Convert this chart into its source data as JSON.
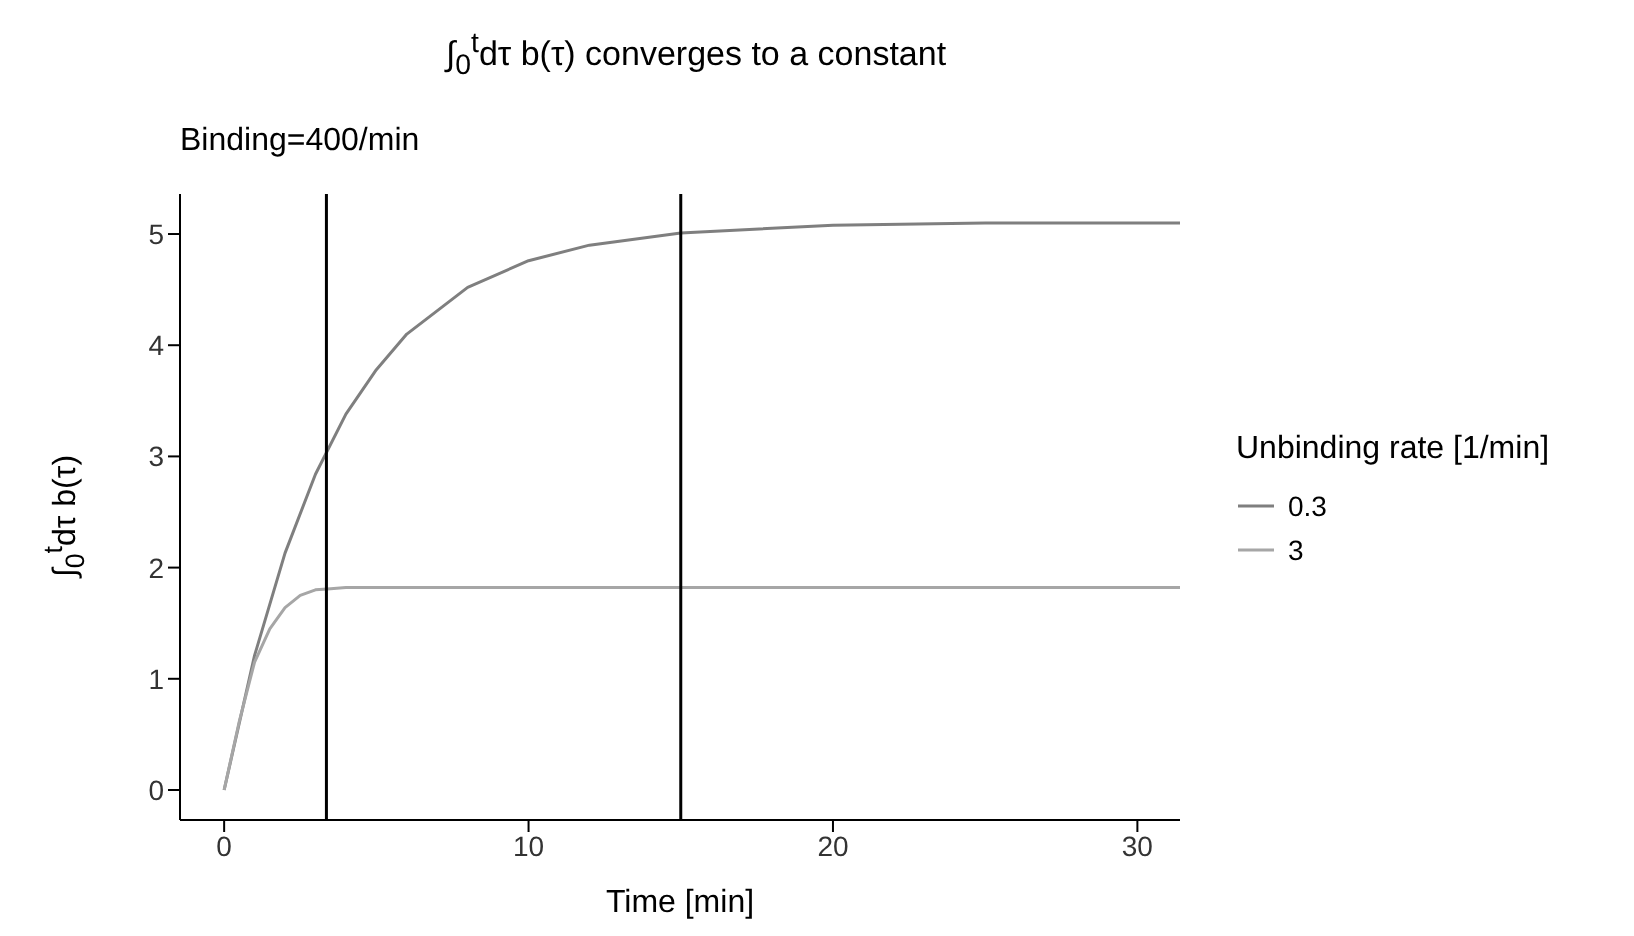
{
  "chart_data": {
    "type": "line",
    "title": "∫$_{0}$$^{t}$dτ b(τ) converges to a constant",
    "subtitle": "Binding=400/min",
    "xlabel": "Time [min]",
    "ylabel": "∫$_{0}$$^{t}$dτ b(τ)",
    "legend_title": "Unbinding rate [1/min]",
    "legend": "right",
    "xlim": [
      -1.45,
      31.4
    ],
    "xticks": [
      0,
      10,
      20,
      30
    ],
    "ylim": [
      -0.27,
      5.36
    ],
    "yticks": [
      0,
      1,
      2,
      3,
      4,
      5
    ],
    "series": [
      {
        "name": "0.3",
        "color": "#7f7f7f",
        "x": [
          0,
          1,
          2,
          3,
          4,
          5,
          6,
          8,
          10,
          12,
          15,
          20,
          25,
          31.4
        ],
        "values": [
          0,
          1.21,
          2.13,
          2.84,
          3.38,
          3.78,
          4.1,
          4.52,
          4.76,
          4.9,
          5.01,
          5.08,
          5.1,
          5.1
        ]
      },
      {
        "name": "3",
        "color": "#a6a6a6",
        "x": [
          0,
          0.5,
          1,
          1.5,
          2,
          2.5,
          3,
          3.5,
          4,
          31.4
        ],
        "values": [
          0,
          0.62,
          1.15,
          1.45,
          1.64,
          1.75,
          1.8,
          1.81,
          1.82,
          1.82
        ]
      }
    ],
    "ref_lines": [
      {
        "axis": "x",
        "value": 3.36,
        "color": "#000000"
      },
      {
        "axis": "x",
        "value": 15,
        "color": "#000000"
      }
    ]
  }
}
